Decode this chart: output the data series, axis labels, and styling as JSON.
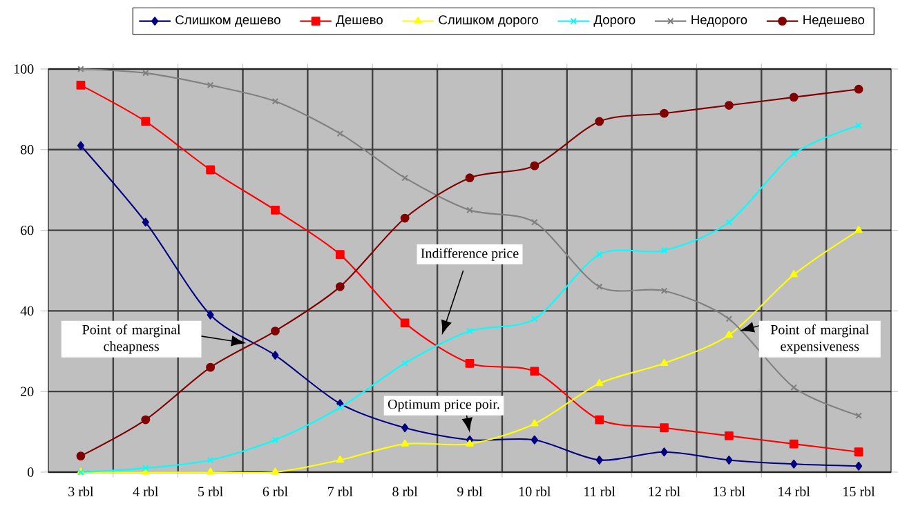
{
  "chart_data": {
    "type": "line",
    "categories": [
      "3 rbl",
      "4 rbl",
      "5 rbl",
      "6 rbl",
      "7 rbl",
      "8 rbl",
      "9 rbl",
      "10 rbl",
      "11 rbl",
      "12 rbl",
      "13 rbl",
      "14 rbl",
      "15 rbl"
    ],
    "series": [
      {
        "name": "Слишком дешево",
        "color": "#000080",
        "marker": "diamond",
        "values": [
          81,
          62,
          39,
          29,
          17,
          11,
          8,
          8,
          3,
          5,
          3,
          2,
          1.5
        ]
      },
      {
        "name": "Дешево",
        "color": "#ff0000",
        "marker": "square",
        "values": [
          96,
          87,
          75,
          65,
          54,
          37,
          27,
          25,
          13,
          11,
          9,
          7,
          5
        ]
      },
      {
        "name": "Слишком дорого",
        "color": "#ffff00",
        "marker": "triangle",
        "values": [
          0,
          0,
          0,
          0,
          3,
          7,
          7,
          12,
          22,
          27,
          34,
          49,
          60
        ]
      },
      {
        "name": "Дорого",
        "color": "#00ffff",
        "marker": "cross",
        "values": [
          0,
          1,
          3,
          8,
          16,
          27,
          35,
          38,
          54,
          55,
          62,
          79,
          86
        ]
      },
      {
        "name": "Недорого",
        "color": "#808080",
        "marker": "cross",
        "values": [
          100,
          99,
          96,
          92,
          84,
          73,
          65,
          62,
          46,
          45,
          38,
          21,
          14
        ]
      },
      {
        "name": "Недешево",
        "color": "#800000",
        "marker": "circle",
        "values": [
          4,
          13,
          26,
          35,
          46,
          63,
          73,
          76,
          87,
          89,
          91,
          93,
          95
        ]
      }
    ],
    "ylim": [
      0,
      100
    ],
    "yticks": [
      0,
      20,
      40,
      60,
      80,
      100
    ],
    "grid": true,
    "legend": "top",
    "annotations": [
      "Point of marginal cheapness",
      "Indifference price",
      "Optimum price poir.",
      "Point of marginal expensiveness"
    ]
  }
}
